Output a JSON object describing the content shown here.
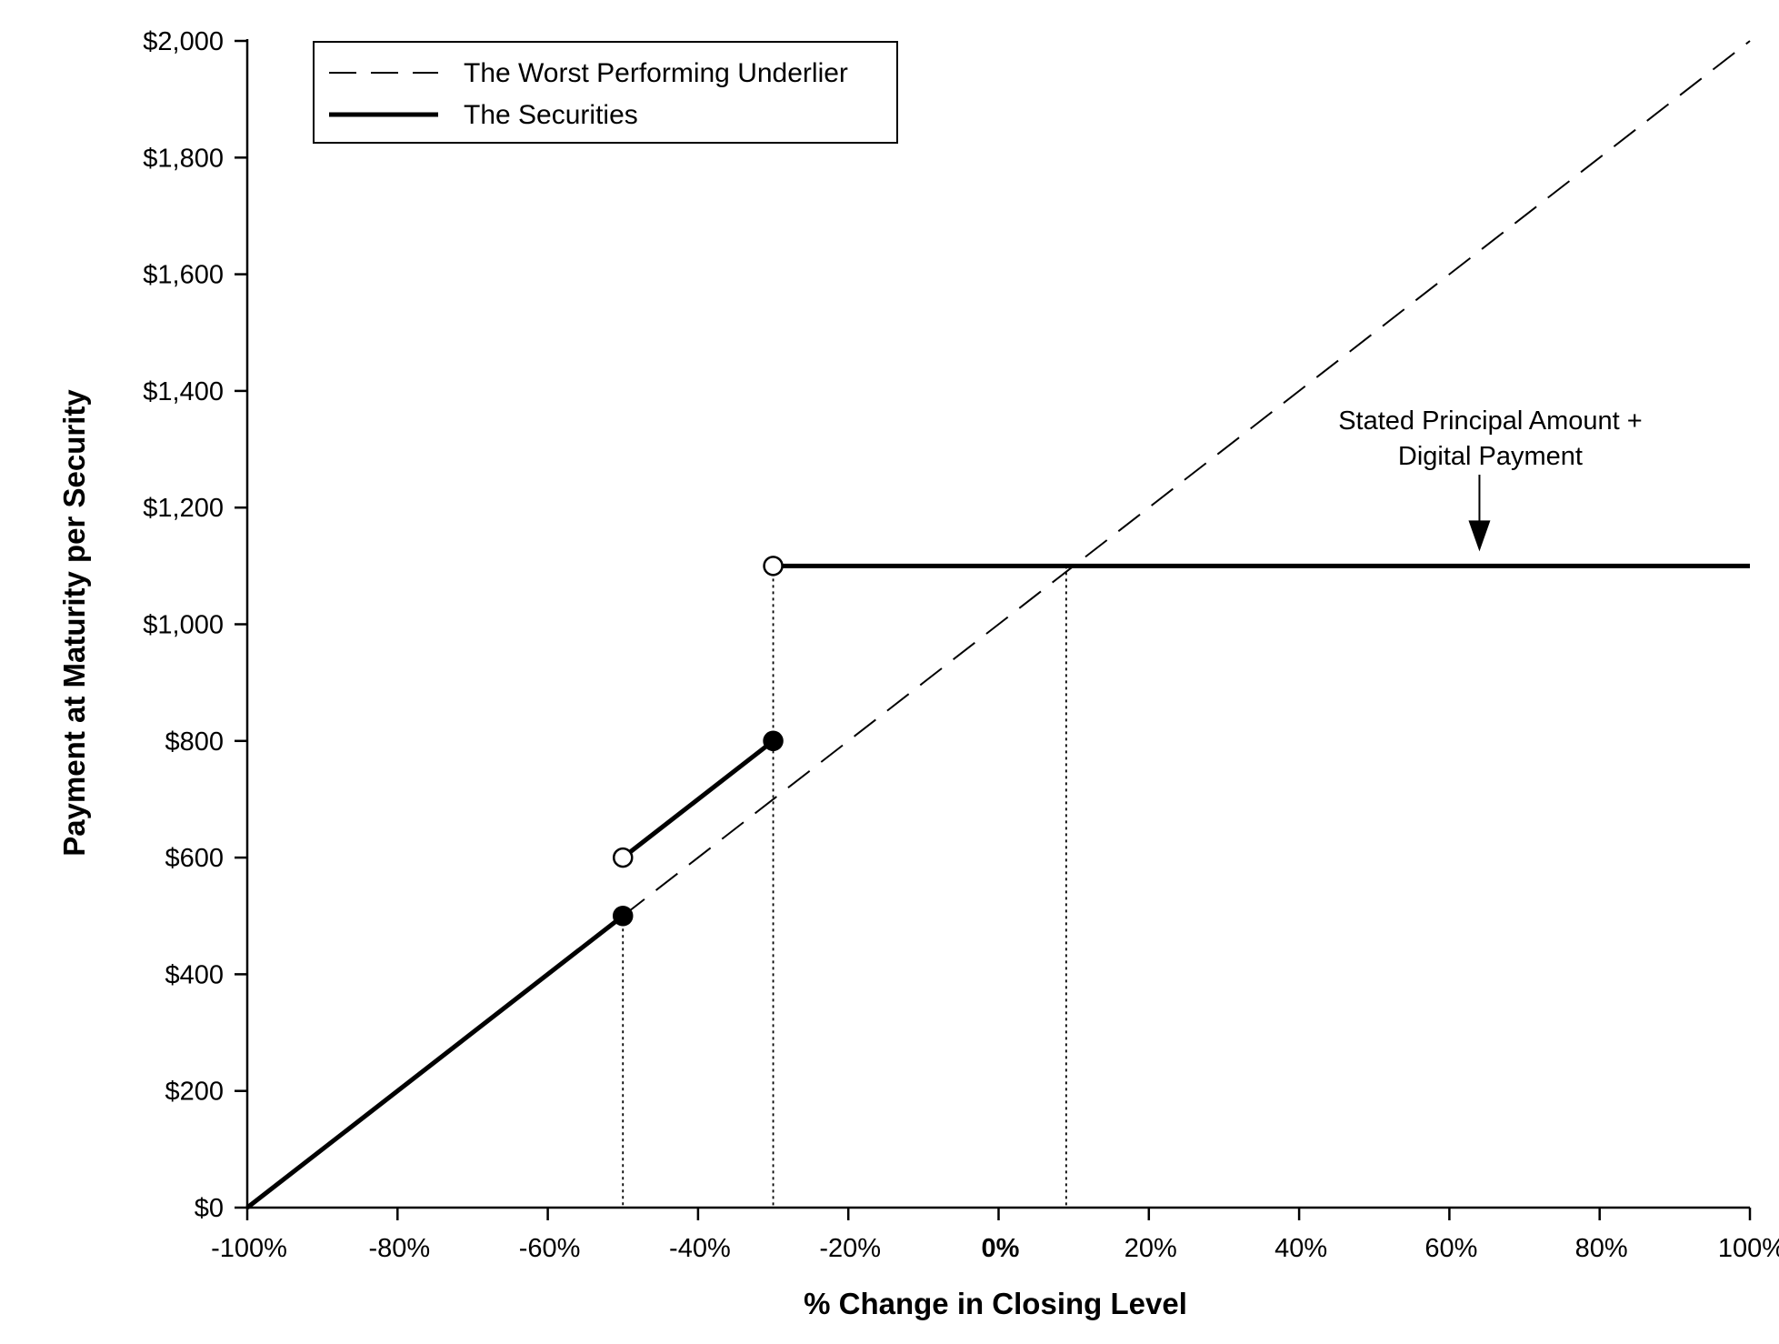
{
  "chart_data": {
    "type": "line",
    "title": "",
    "xlabel": "% Change in Closing Level",
    "ylabel": "Payment at Maturity per Security",
    "xlim": [
      -100,
      100
    ],
    "ylim": [
      0,
      2000
    ],
    "x_ticks": [
      -100,
      -80,
      -60,
      -40,
      -20,
      0,
      20,
      40,
      60,
      80,
      100
    ],
    "x_tick_labels": [
      "-100%",
      "-80%",
      "-60%",
      "-40%",
      "-20%",
      "0%",
      "20%",
      "40%",
      "60%",
      "80%",
      "100%"
    ],
    "y_ticks": [
      0,
      200,
      400,
      600,
      800,
      1000,
      1200,
      1400,
      1600,
      1800,
      2000
    ],
    "y_tick_labels": [
      "$0",
      "$200",
      "$400",
      "$600",
      "$800",
      "$1,000",
      "$1,200",
      "$1,400",
      "$1,600",
      "$1,800",
      "$2,000"
    ],
    "grid": false,
    "legend_position": "top-left",
    "series": [
      {
        "name": "The Worst Performing Underlier",
        "style": "dashed",
        "color": "#000000",
        "segments": [
          {
            "x": [
              -50,
              100
            ],
            "y": [
              500,
              2000
            ]
          }
        ]
      },
      {
        "name": "The Securities",
        "style": "solid",
        "color": "#000000",
        "segments": [
          {
            "x": [
              -100,
              -50
            ],
            "y": [
              0,
              500
            ]
          },
          {
            "x": [
              -50,
              -30
            ],
            "y": [
              600,
              800
            ]
          },
          {
            "x": [
              -30,
              100
            ],
            "y": [
              1100,
              1100
            ]
          }
        ]
      }
    ],
    "markers": [
      {
        "x": -50,
        "y": 500,
        "fill": "filled"
      },
      {
        "x": -50,
        "y": 600,
        "fill": "open"
      },
      {
        "x": -30,
        "y": 800,
        "fill": "filled"
      },
      {
        "x": -30,
        "y": 1100,
        "fill": "open"
      }
    ],
    "reference_lines": [
      {
        "x": -50,
        "y_top": 500
      },
      {
        "x": -30,
        "y_top": 1100
      },
      {
        "x": 9,
        "y_top": 1100
      }
    ],
    "annotations": [
      {
        "lines": [
          "Stated Principal Amount +",
          "Digital Payment"
        ],
        "arrow_x": 64,
        "arrow_to_y": 1100
      }
    ]
  }
}
